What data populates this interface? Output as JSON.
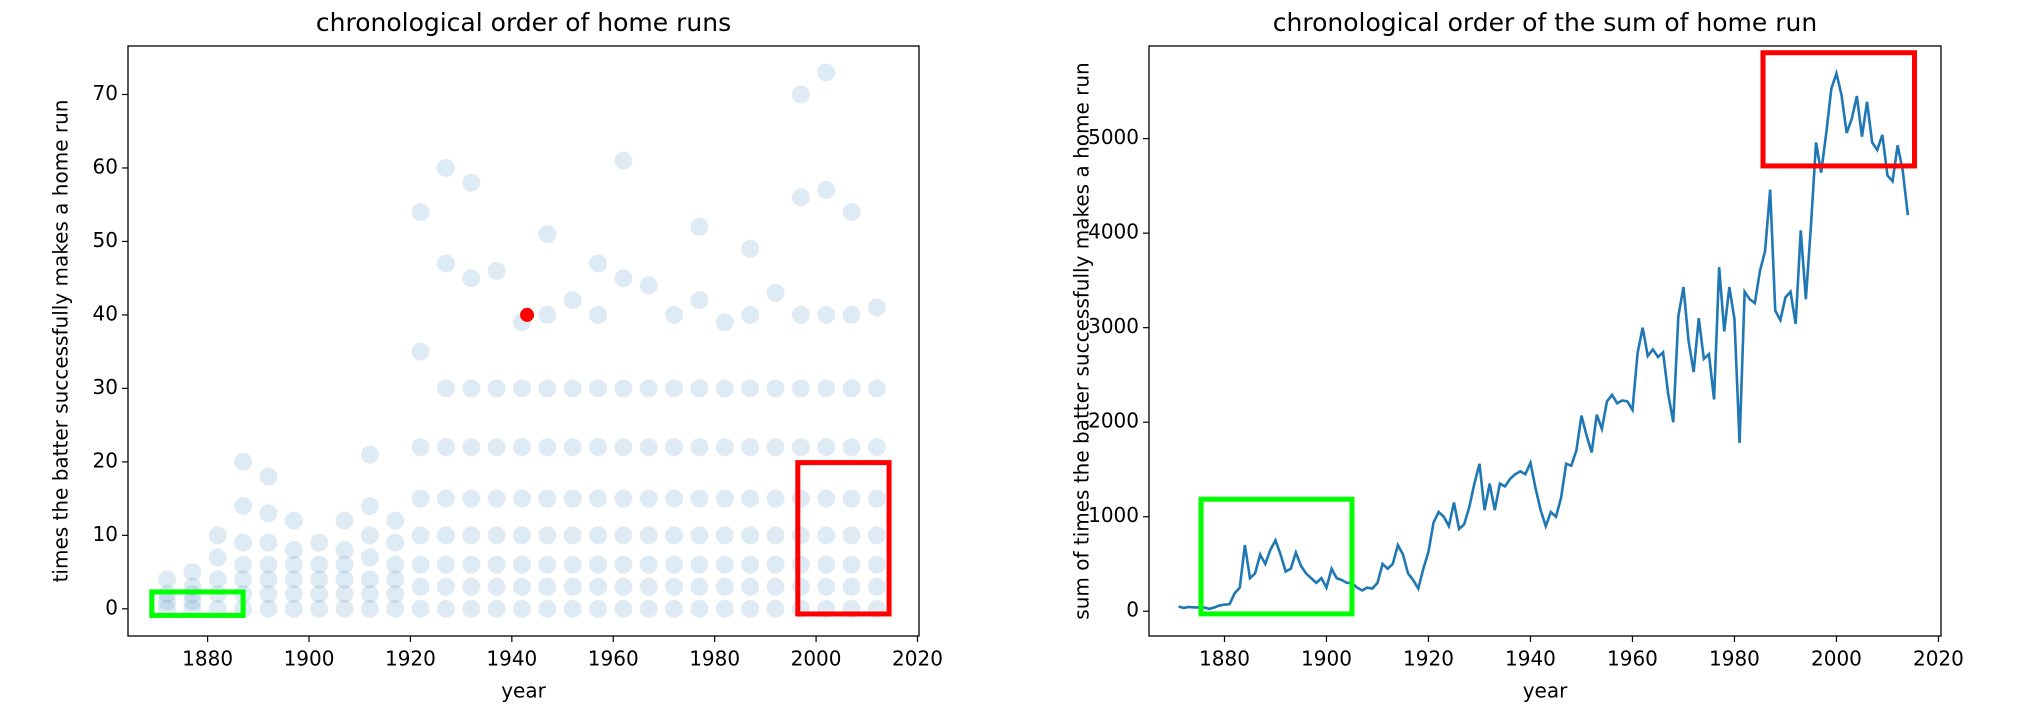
{
  "chart_data": [
    {
      "type": "scatter",
      "title": "chronological order of home runs",
      "x_label": "year",
      "y_label": "times the batter successfully makes a home run",
      "color": "#1f77b4",
      "alpha": 0.15,
      "x": [
        1872,
        1872,
        1872,
        1872,
        1877,
        1877,
        1877,
        1877,
        1877,
        1882,
        1882,
        1882,
        1882,
        1882,
        1887,
        1887,
        1887,
        1887,
        1887,
        1887,
        1887,
        1892,
        1892,
        1892,
        1892,
        1892,
        1892,
        1892,
        1897,
        1897,
        1897,
        1897,
        1897,
        1897,
        1902,
        1902,
        1902,
        1902,
        1902,
        1907,
        1907,
        1907,
        1907,
        1907,
        1907,
        1912,
        1912,
        1912,
        1912,
        1912,
        1912,
        1912,
        1917,
        1917,
        1917,
        1917,
        1917,
        1917,
        1922,
        1922,
        1922,
        1922,
        1922,
        1922,
        1922,
        1922,
        1927,
        1927,
        1927,
        1927,
        1927,
        1927,
        1927,
        1927,
        1927,
        1932,
        1932,
        1932,
        1932,
        1932,
        1932,
        1932,
        1932,
        1932,
        1937,
        1937,
        1937,
        1937,
        1937,
        1937,
        1937,
        1937,
        1942,
        1942,
        1942,
        1942,
        1942,
        1942,
        1942,
        1942,
        1947,
        1947,
        1947,
        1947,
        1947,
        1947,
        1947,
        1947,
        1947,
        1952,
        1952,
        1952,
        1952,
        1952,
        1952,
        1952,
        1952,
        1957,
        1957,
        1957,
        1957,
        1957,
        1957,
        1957,
        1957,
        1957,
        1962,
        1962,
        1962,
        1962,
        1962,
        1962,
        1962,
        1962,
        1962,
        1967,
        1967,
        1967,
        1967,
        1967,
        1967,
        1967,
        1967,
        1972,
        1972,
        1972,
        1972,
        1972,
        1972,
        1972,
        1972,
        1977,
        1977,
        1977,
        1977,
        1977,
        1977,
        1977,
        1977,
        1977,
        1982,
        1982,
        1982,
        1982,
        1982,
        1982,
        1982,
        1982,
        1987,
        1987,
        1987,
        1987,
        1987,
        1987,
        1987,
        1987,
        1987,
        1992,
        1992,
        1992,
        1992,
        1992,
        1992,
        1992,
        1992,
        1997,
        1997,
        1997,
        1997,
        1997,
        1997,
        1997,
        1997,
        1997,
        1997,
        2002,
        2002,
        2002,
        2002,
        2002,
        2002,
        2002,
        2002,
        2002,
        2002,
        2007,
        2007,
        2007,
        2007,
        2007,
        2007,
        2007,
        2007,
        2007,
        2012,
        2012,
        2012,
        2012,
        2012,
        2012,
        2012,
        2012
      ],
      "values": [
        0,
        1,
        2,
        4,
        0,
        1,
        2,
        3,
        5,
        0,
        2,
        4,
        7,
        10,
        0,
        2,
        4,
        6,
        9,
        14,
        20,
        0,
        2,
        4,
        6,
        9,
        13,
        18,
        0,
        2,
        4,
        6,
        8,
        12,
        0,
        2,
        4,
        6,
        9,
        0,
        2,
        4,
        6,
        8,
        12,
        0,
        2,
        4,
        7,
        10,
        14,
        21,
        0,
        2,
        4,
        6,
        9,
        12,
        0,
        3,
        6,
        10,
        15,
        22,
        35,
        54,
        0,
        3,
        6,
        10,
        15,
        22,
        30,
        47,
        60,
        0,
        3,
        6,
        10,
        15,
        22,
        30,
        45,
        58,
        0,
        3,
        6,
        10,
        15,
        22,
        30,
        46,
        0,
        3,
        6,
        10,
        15,
        22,
        30,
        39,
        0,
        3,
        6,
        10,
        15,
        22,
        30,
        40,
        51,
        0,
        3,
        6,
        10,
        15,
        22,
        30,
        42,
        0,
        3,
        6,
        10,
        15,
        22,
        30,
        40,
        47,
        0,
        3,
        6,
        10,
        15,
        22,
        30,
        45,
        61,
        0,
        3,
        6,
        10,
        15,
        22,
        30,
        44,
        0,
        3,
        6,
        10,
        15,
        22,
        30,
        40,
        0,
        3,
        6,
        10,
        15,
        22,
        30,
        42,
        52,
        0,
        3,
        6,
        10,
        15,
        22,
        30,
        39,
        0,
        3,
        6,
        10,
        15,
        22,
        30,
        40,
        49,
        0,
        3,
        6,
        10,
        15,
        22,
        30,
        43,
        0,
        3,
        6,
        10,
        15,
        22,
        30,
        40,
        56,
        70,
        0,
        3,
        6,
        10,
        15,
        22,
        30,
        40,
        57,
        73,
        0,
        3,
        6,
        10,
        15,
        22,
        30,
        40,
        54,
        0,
        3,
        6,
        10,
        15,
        22,
        30,
        41
      ],
      "highlight": {
        "x": 1943,
        "y": 40,
        "color": "#ff0000"
      },
      "boxes": [
        {
          "x": [
            1869,
            1887
          ],
          "y": [
            -0.9,
            2.3
          ],
          "color": "#00ff00"
        },
        {
          "x": [
            1996.4,
            2014.4
          ],
          "y": [
            -0.7,
            19.9
          ],
          "color": "#ff0000"
        }
      ],
      "xlim": [
        1864.3,
        2020.3
      ],
      "ylim": [
        -3.7,
        76.6
      ],
      "xticks": [
        1880,
        1900,
        1920,
        1940,
        1960,
        1980,
        2000,
        2020
      ],
      "yticks": [
        0,
        10,
        20,
        30,
        40,
        50,
        60,
        70
      ]
    },
    {
      "type": "line",
      "title": "chronological order of the sum of home run",
      "x_label": "year",
      "y_label": "sum of times the batter successfully makes a home run",
      "color": "#1f77b4",
      "x": [
        1871,
        1872,
        1873,
        1874,
        1875,
        1876,
        1877,
        1878,
        1879,
        1880,
        1881,
        1882,
        1883,
        1884,
        1885,
        1886,
        1887,
        1888,
        1889,
        1890,
        1891,
        1892,
        1893,
        1894,
        1895,
        1896,
        1897,
        1898,
        1899,
        1900,
        1901,
        1902,
        1903,
        1904,
        1905,
        1906,
        1907,
        1908,
        1909,
        1910,
        1911,
        1912,
        1913,
        1914,
        1915,
        1916,
        1917,
        1918,
        1919,
        1920,
        1921,
        1922,
        1923,
        1924,
        1925,
        1926,
        1927,
        1928,
        1929,
        1930,
        1931,
        1932,
        1933,
        1934,
        1935,
        1936,
        1937,
        1938,
        1939,
        1940,
        1941,
        1942,
        1943,
        1944,
        1945,
        1946,
        1947,
        1948,
        1949,
        1950,
        1951,
        1952,
        1953,
        1954,
        1955,
        1956,
        1957,
        1958,
        1959,
        1960,
        1961,
        1962,
        1963,
        1964,
        1965,
        1966,
        1967,
        1968,
        1969,
        1970,
        1971,
        1972,
        1973,
        1974,
        1975,
        1976,
        1977,
        1978,
        1979,
        1980,
        1981,
        1982,
        1983,
        1984,
        1985,
        1986,
        1987,
        1988,
        1989,
        1990,
        1991,
        1992,
        1993,
        1994,
        1995,
        1996,
        1997,
        1998,
        1999,
        2000,
        2001,
        2002,
        2003,
        2004,
        2005,
        2006,
        2007,
        2008,
        2009,
        2010,
        2011,
        2012,
        2013,
        2014
      ],
      "values": [
        50,
        35,
        45,
        40,
        40,
        40,
        25,
        40,
        60,
        70,
        75,
        190,
        250,
        700,
        350,
        400,
        600,
        500,
        650,
        750,
        600,
        420,
        450,
        620,
        480,
        400,
        350,
        300,
        350,
        250,
        450,
        350,
        330,
        300,
        300,
        250,
        220,
        250,
        240,
        300,
        500,
        450,
        500,
        700,
        600,
        400,
        330,
        240,
        450,
        630,
        940,
        1050,
        1000,
        900,
        1150,
        870,
        920,
        1100,
        1350,
        1560,
        1070,
        1350,
        1070,
        1350,
        1320,
        1400,
        1450,
        1480,
        1450,
        1570,
        1300,
        1070,
        900,
        1050,
        1000,
        1200,
        1560,
        1540,
        1700,
        2070,
        1860,
        1680,
        2080,
        1930,
        2220,
        2290,
        2200,
        2230,
        2220,
        2130,
        2730,
        3000,
        2700,
        2770,
        2690,
        2740,
        2300,
        2000,
        3120,
        3430,
        2860,
        2530,
        3100,
        2670,
        2720,
        2240,
        3640,
        2960,
        3430,
        3090,
        1780,
        3380,
        3300,
        3260,
        3600,
        3810,
        4460,
        3180,
        3080,
        3320,
        3380,
        3040,
        4030,
        3300,
        4080,
        4960,
        4640,
        5060,
        5530,
        5690,
        5460,
        5060,
        5210,
        5450,
        5020,
        5390,
        4960,
        4880,
        5040,
        4610,
        4550,
        4930,
        4660,
        4190
      ],
      "boxes": [
        {
          "x": [
            1875.4,
            1905
          ],
          "y": [
            -28,
            1185
          ],
          "color": "#00ff00"
        },
        {
          "x": [
            1985.6,
            2015.3
          ],
          "y": [
            4711,
            5909
          ],
          "color": "#ff0000"
        }
      ],
      "xlim": [
        1865.2,
        2020.5
      ],
      "ylim": [
        -262,
        5980
      ],
      "xticks": [
        1880,
        1900,
        1920,
        1940,
        1960,
        1980,
        2000,
        2020
      ],
      "yticks": [
        0,
        1000,
        2000,
        3000,
        4000,
        5000
      ]
    }
  ]
}
